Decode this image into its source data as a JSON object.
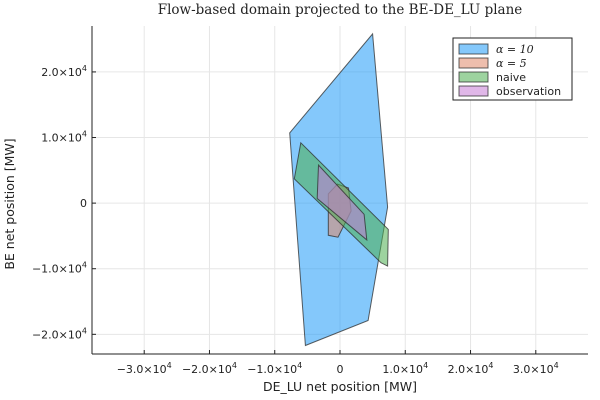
{
  "chart_data": {
    "type": "area",
    "title": "Flow-based domain projected to the BE-DE_LU plane",
    "xlabel": "DE_LU net position [MW]",
    "ylabel": "BE net position [MW]",
    "xlim": [
      -38000,
      38000
    ],
    "ylim": [
      -23000,
      27000
    ],
    "grid": true,
    "legend_position": "top-right",
    "x_ticks": [
      {
        "value": -30000,
        "mantissa": "−3.0×10",
        "exp": "4"
      },
      {
        "value": -20000,
        "mantissa": "−2.0×10",
        "exp": "4"
      },
      {
        "value": -10000,
        "mantissa": "−1.0×10",
        "exp": "4"
      },
      {
        "value": 0,
        "mantissa": "0",
        "exp": ""
      },
      {
        "value": 10000,
        "mantissa": "1.0×10",
        "exp": "4"
      },
      {
        "value": 20000,
        "mantissa": "2.0×10",
        "exp": "4"
      },
      {
        "value": 30000,
        "mantissa": "3.0×10",
        "exp": "4"
      }
    ],
    "y_ticks": [
      {
        "value": -20000,
        "mantissa": "−2.0×10",
        "exp": "4"
      },
      {
        "value": -10000,
        "mantissa": "−1.0×10",
        "exp": "4"
      },
      {
        "value": 0,
        "mantissa": "0",
        "exp": ""
      },
      {
        "value": 10000,
        "mantissa": "1.0×10",
        "exp": "4"
      },
      {
        "value": 20000,
        "mantissa": "2.0×10",
        "exp": "4"
      }
    ],
    "series": [
      {
        "name": "α = 10",
        "name_is_math": true,
        "color": "#1f9bf7",
        "points": [
          [
            5000,
            25800
          ],
          [
            7300,
            -600
          ],
          [
            4300,
            -17900
          ],
          [
            -5300,
            -21700
          ],
          [
            -7700,
            10700
          ]
        ]
      },
      {
        "name": "α = 5",
        "name_is_math": true,
        "color": "#e0896a",
        "points": [
          [
            -400,
            2900
          ],
          [
            1300,
            2300
          ],
          [
            1700,
            -1200
          ],
          [
            -300,
            -5200
          ],
          [
            -1800,
            -4900
          ],
          [
            -1800,
            1400
          ]
        ]
      },
      {
        "name": "naive",
        "name_is_math": false,
        "color": "#4caf50",
        "points": [
          [
            -6000,
            9200
          ],
          [
            7400,
            -4000
          ],
          [
            7300,
            -9600
          ],
          [
            6300,
            -9100
          ],
          [
            -7000,
            3700
          ]
        ]
      },
      {
        "name": "observation",
        "name_is_math": false,
        "color": "#c77bd6",
        "points": [
          [
            -3300,
            5800
          ],
          [
            3700,
            -1700
          ],
          [
            4100,
            -5600
          ],
          [
            -3500,
            700
          ]
        ]
      }
    ]
  }
}
